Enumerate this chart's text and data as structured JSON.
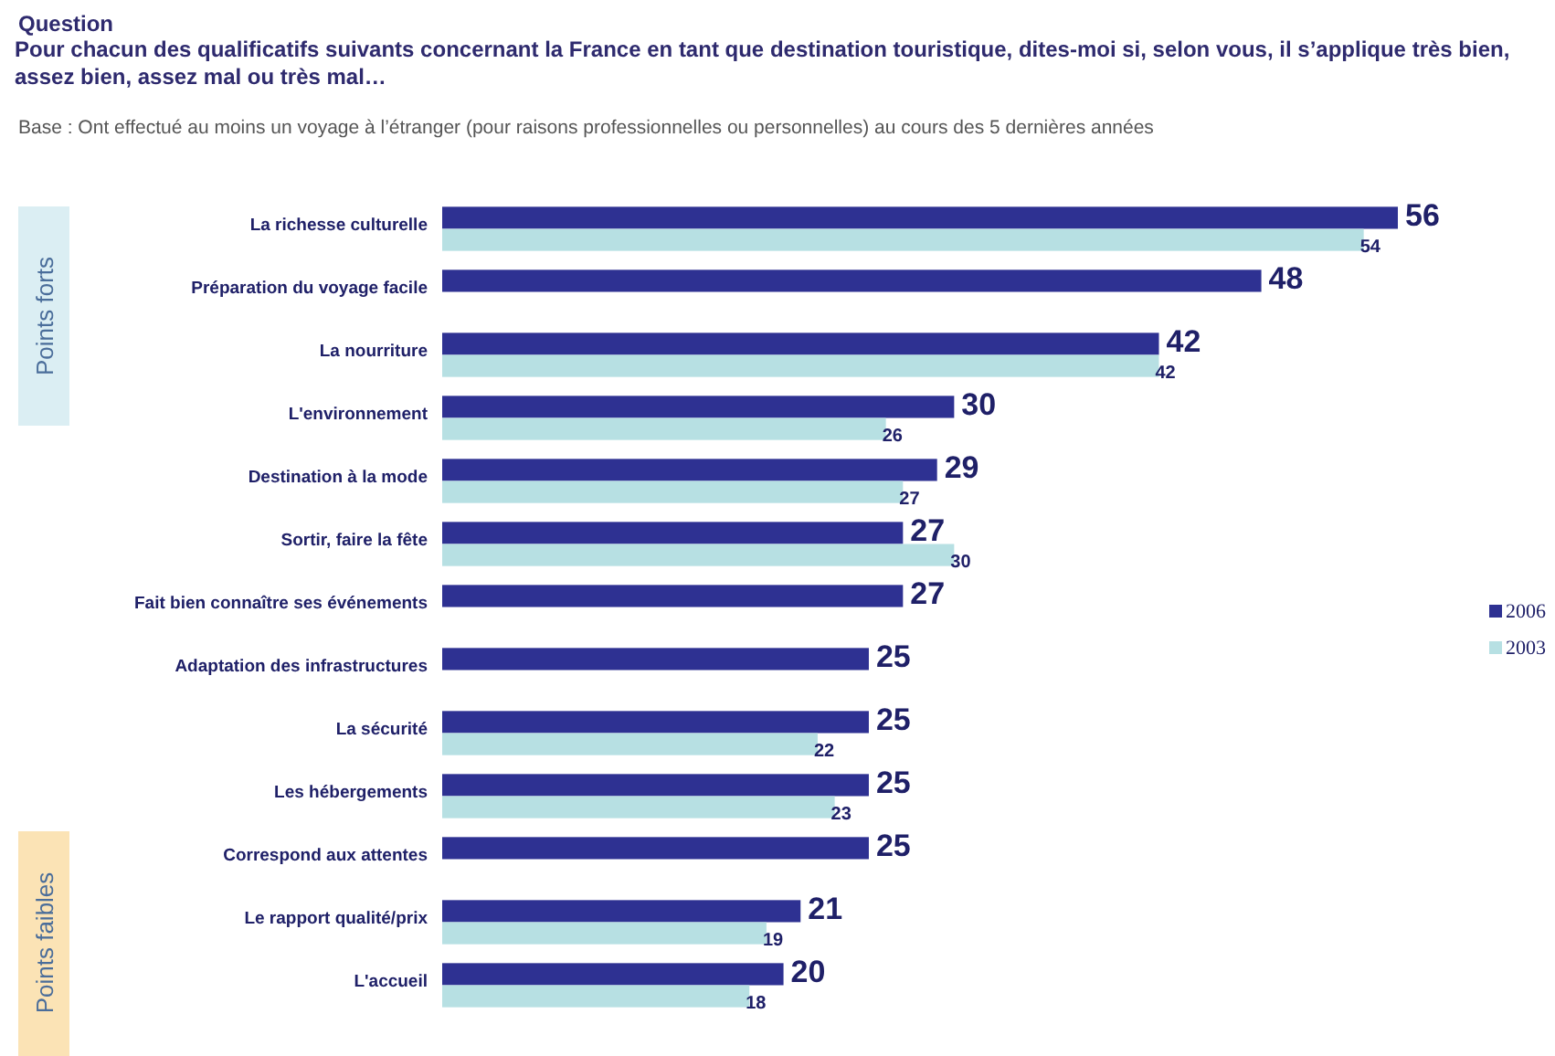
{
  "chart_data": {
    "type": "bar",
    "orientation": "horizontal",
    "title": "Question",
    "subtitle": "Pour chacun des qualificatifs suivants concernant la France en tant que destination touristique, dites-moi si, selon vous, il s’applique très bien, assez bien, assez mal ou très mal…",
    "annotations": [
      "Base : Ont effectué au moins un voyage à l’étranger (pour raisons professionnelles ou personnelles) au cours des 5 dernières années",
      "Points forts",
      "Points faibles"
    ],
    "categories": [
      "La richesse culturelle",
      "Préparation du voyage facile",
      "La nourriture",
      "L'environnement",
      "Destination à la mode",
      "Sortir, faire la fête",
      "Fait bien connaître ses événements",
      "Adaptation des infrastructures",
      "La sécurité",
      "Les hébergements",
      "Correspond aux attentes",
      "Le rapport qualité/prix",
      "L'accueil"
    ],
    "series": [
      {
        "name": "2006",
        "color": "#2e3192",
        "values": [
          56,
          48,
          42,
          30,
          29,
          27,
          27,
          25,
          25,
          25,
          25,
          21,
          20
        ]
      },
      {
        "name": "2003",
        "color": "#b7e0e3",
        "values": [
          54,
          null,
          42,
          26,
          27,
          30,
          null,
          null,
          22,
          23,
          null,
          19,
          18
        ]
      }
    ],
    "relative": false,
    "data_labels": true,
    "legend": "right"
  }
}
